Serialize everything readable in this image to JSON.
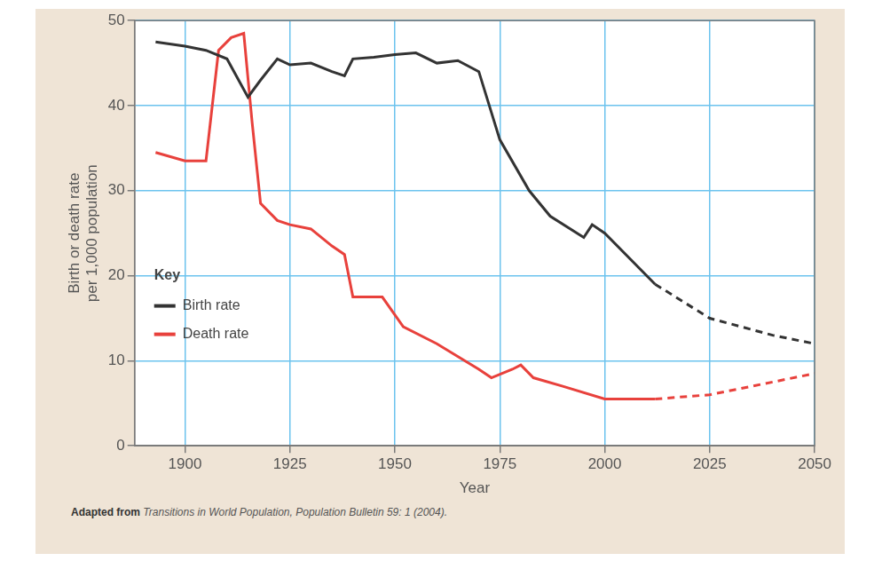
{
  "chart_data": {
    "type": "line",
    "x_label": "Year",
    "y_label": [
      "Birth or death rate",
      "per 1,000 population"
    ],
    "legend_title": "Key",
    "legend": "lower left",
    "grid": true,
    "xlim": [
      1888,
      2050
    ],
    "xticks": [
      1900,
      1925,
      1950,
      1975,
      2000,
      2025,
      2050
    ],
    "ylim": [
      0,
      50
    ],
    "yticks": [
      0,
      10,
      20,
      30,
      40,
      50
    ],
    "series": [
      {
        "name": "Birth rate",
        "color": "#333333",
        "line_style": "solid",
        "x": [
          1893,
          1900,
          1905,
          1910,
          1915,
          1918,
          1922,
          1925,
          1930,
          1935,
          1938,
          1940,
          1945,
          1950,
          1955,
          1960,
          1965,
          1970,
          1975,
          1982,
          1987,
          1995,
          1997,
          2000,
          2012
        ],
        "values": [
          47.5,
          47,
          46.5,
          45.5,
          41,
          43,
          45.5,
          44.8,
          45,
          44,
          43.5,
          45.5,
          45.7,
          46,
          46.2,
          45,
          45.3,
          44,
          36,
          30,
          27,
          24.5,
          26,
          25,
          19
        ]
      },
      {
        "color": "#333333",
        "line_style": "dashed",
        "x": [
          2012,
          2025,
          2040,
          2050
        ],
        "values": [
          19,
          15,
          13,
          12
        ]
      },
      {
        "name": "Death rate",
        "color": "#e8413c",
        "line_style": "solid",
        "x": [
          1893,
          1900,
          1905,
          1908,
          1911,
          1914,
          1916,
          1918,
          1922,
          1925,
          1930,
          1935,
          1938,
          1940,
          1947,
          1952,
          1960,
          1970,
          1973,
          1978,
          1980,
          1983,
          1990,
          2000,
          2005,
          2012
        ],
        "values": [
          34.5,
          33.5,
          33.5,
          46.5,
          48,
          48.5,
          38,
          28.5,
          26.5,
          26,
          25.5,
          23.5,
          22.5,
          17.5,
          17.5,
          14,
          12,
          9,
          8,
          9,
          9.5,
          8,
          7,
          5.5,
          5.5,
          5.5
        ]
      },
      {
        "color": "#e8413c",
        "line_style": "dashed",
        "x": [
          2012,
          2025,
          2040,
          2050
        ],
        "values": [
          5.5,
          6,
          7.5,
          8.5
        ]
      }
    ],
    "source_label": "Adapted from",
    "source": "Transitions in World Population, Population Bulletin 59: 1 (2004)."
  }
}
